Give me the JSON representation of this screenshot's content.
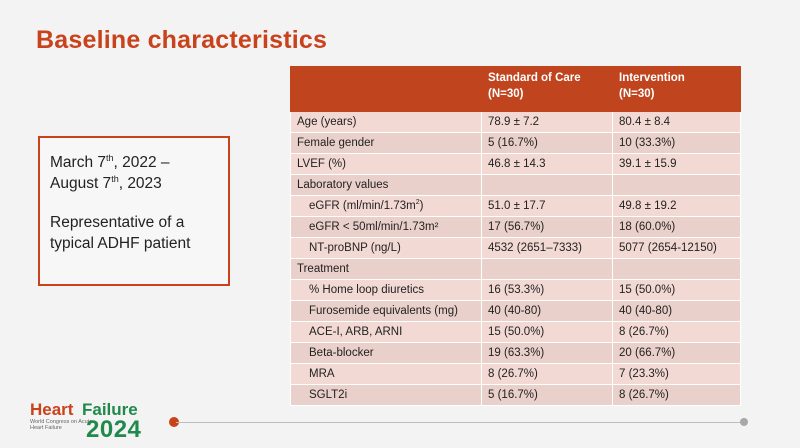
{
  "slide": {
    "title": "Baseline characteristics"
  },
  "info_box": {
    "line1_a": "March 7",
    "line1_sup": "th",
    "line1_b": ", 2022 –",
    "line2_a": "August 7",
    "line2_sup": "th",
    "line2_b": ", 2023",
    "line3": "Representative of a",
    "line4": "typical ADHF patient"
  },
  "table": {
    "headers": [
      {
        "name": "",
        "n": ""
      },
      {
        "name": "Standard of Care",
        "n": "(N=30)"
      },
      {
        "name": "Intervention",
        "n": "(N=30)"
      }
    ],
    "rows": [
      {
        "label": "Age (years)",
        "soc": "78.9 ± 7.2",
        "intervention": "80.4 ± 8.4"
      },
      {
        "label": "Female gender",
        "soc": "5 (16.7%)",
        "intervention": "10 (33.3%)"
      },
      {
        "label": "LVEF (%)",
        "soc": "46.8 ± 14.3",
        "intervention": "39.1 ± 15.9"
      },
      {
        "label": "Laboratory values",
        "soc": "",
        "intervention": ""
      },
      {
        "label_a": "eGFR (ml/min/1.73m",
        "label_sup": "2",
        "label_b": ")",
        "soc": "51.0 ± 17.7",
        "intervention": "49.8 ± 19.2"
      },
      {
        "label": "eGFR < 50ml/min/1.73m²",
        "soc": "17 (56.7%)",
        "intervention": "18 (60.0%)"
      },
      {
        "label": "NT-proBNP (ng/L)",
        "soc": "4532 (2651–7333)",
        "intervention": "5077 (2654-12150)"
      },
      {
        "label": "Treatment",
        "soc": "",
        "intervention": ""
      },
      {
        "label": "% Home loop diuretics",
        "soc": "16 (53.3%)",
        "intervention": "15 (50.0%)"
      },
      {
        "label": "Furosemide equivalents (mg)",
        "soc": "40 (40-80)",
        "intervention": "40 (40-80)"
      },
      {
        "label": "ACE-I, ARB, ARNI",
        "soc": "15 (50.0%)",
        "intervention": "8 (26.7%)"
      },
      {
        "label": "Beta-blocker",
        "soc": "19 (63.3%)",
        "intervention": "20 (66.7%)"
      },
      {
        "label": "MRA",
        "soc": "8 (26.7%)",
        "intervention": "7 (23.3%)"
      },
      {
        "label": "SGLT2i",
        "soc": "5 (16.7%)",
        "intervention": "8 (26.7%)"
      }
    ]
  },
  "logo": {
    "word1": "Heart",
    "word2": "Failure",
    "subtitle": "World Congress on Acute Heart Failure",
    "year": "2024"
  },
  "colors": {
    "accent": "#c8421b",
    "header_bg": "#c0451f",
    "row_bg": "#f2d9d4",
    "row_alt_bg": "#ead0ca",
    "logo_green": "#1f8a4c"
  }
}
